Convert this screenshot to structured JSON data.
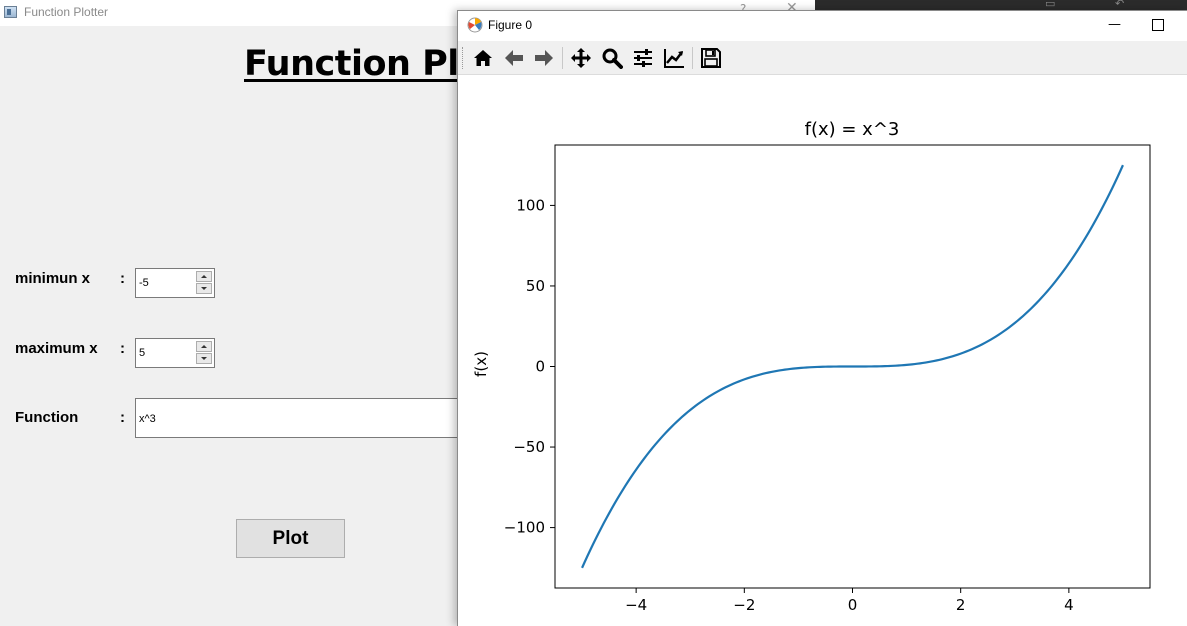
{
  "main_window": {
    "title": "Function Plotter",
    "heading": "Function Plotter",
    "min_x": {
      "label": "minimun x",
      "colon": ":",
      "value": "-5"
    },
    "max_x": {
      "label": "maximum x",
      "colon": ":",
      "value": "5"
    },
    "function": {
      "label": "Function",
      "colon": ":",
      "value": "x^3"
    },
    "plot_button": "Plot",
    "window_controls": {
      "help": "?",
      "close": "✕"
    }
  },
  "figure_window": {
    "title": "Figure 0",
    "controls": {
      "minimize": "—"
    },
    "toolbar": [
      "home-icon",
      "back-arrow-icon",
      "forward-arrow-icon",
      "pan-icon",
      "zoom-icon",
      "subplots-icon",
      "edit-axis-icon",
      "save-icon"
    ]
  },
  "chart_data": {
    "type": "line",
    "title": "f(x) = x^3",
    "xlabel": "",
    "ylabel": "f(x)",
    "function": "x^3",
    "x_range": [
      -5,
      5
    ],
    "xlim": [
      -5.5,
      5.5
    ],
    "ylim": [
      -137.5,
      137.5
    ],
    "xticks": [
      -4,
      -2,
      0,
      2,
      4
    ],
    "yticks": [
      -100,
      -50,
      0,
      50,
      100
    ],
    "xtick_labels": [
      "−4",
      "−2",
      "0",
      "2",
      "4"
    ],
    "ytick_labels": [
      "−100",
      "−50",
      "0",
      "50",
      "100"
    ],
    "series": [
      {
        "color": "#1f77b4",
        "x": [
          -5,
          -4.5,
          -4,
          -3.5,
          -3,
          -2.5,
          -2,
          -1.5,
          -1,
          -0.5,
          0,
          0.5,
          1,
          1.5,
          2,
          2.5,
          3,
          3.5,
          4,
          4.5,
          5
        ],
        "y": [
          -125,
          -91.125,
          -64,
          -42.875,
          -27,
          -15.625,
          -8,
          -3.375,
          -1,
          -0.125,
          0,
          0.125,
          1,
          3.375,
          8,
          15.625,
          27,
          42.875,
          64,
          91.125,
          125
        ]
      }
    ],
    "grid": false,
    "legend": "none"
  }
}
